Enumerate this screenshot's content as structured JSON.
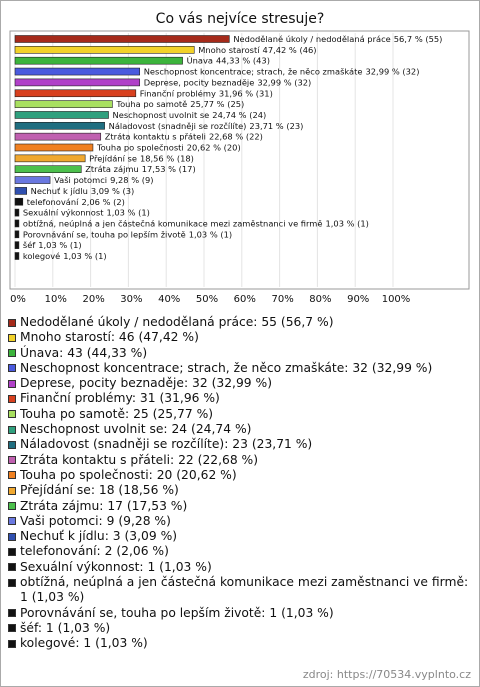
{
  "chart_data": {
    "type": "hbar",
    "title": "Co vás nejvíce stresuje?",
    "categories": [
      "Nedodělané úkoly / nedodělaná práce",
      "Mnoho starostí",
      "Únava",
      "Neschopnost koncentrace; strach, že něco zmaškáte",
      "Deprese, pocity beznaděje",
      "Finanční problémy",
      "Touha po samotě",
      "Neschopnost uvolnit se",
      "Náladovost (snadněji se rozčílíte)",
      "Ztráta kontaktu s přáteli",
      "Touha po společnosti",
      "Přejídání se",
      "Ztráta zájmu",
      "Vaši potomci",
      "Nechuť k jídlu",
      "telefonování",
      "Sexuální výkonnost",
      "obtížná, neúplná a jen částečná komunikace mezi zaměstnanci ve firmě",
      "Porovnávání se, touha po lepším životě",
      "šéf",
      "kolegové"
    ],
    "values": [
      56.7,
      47.42,
      44.33,
      32.99,
      32.99,
      31.96,
      25.77,
      24.74,
      23.71,
      22.68,
      20.62,
      18.56,
      17.53,
      9.28,
      3.09,
      2.06,
      1.03,
      1.03,
      1.03,
      1.03,
      1.03
    ],
    "value_labels": [
      "56,7 % (55)",
      "47,42 % (46)",
      "44,33 % (43)",
      "32,99 % (32)",
      "32,99 % (32)",
      "31,96 % (31)",
      "25,77 % (25)",
      "24,74 % (24)",
      "23,71 % (23)",
      "22,68 % (22)",
      "20,62 % (20)",
      "18,56 % (18)",
      "17,53 % (17)",
      "9,28 % (9)",
      "3,09 % (3)",
      "2,06 % (2)",
      "1,03 % (1)",
      "1,03 % (1)",
      "1,03 % (1)",
      "1,03 % (1)",
      "1,03 % (1)"
    ],
    "colors": [
      "#a52a1a",
      "#f2d22a",
      "#3cb43c",
      "#4a5ade",
      "#b040c8",
      "#d8401e",
      "#a8e060",
      "#2fa07e",
      "#1f6e80",
      "#c060b0",
      "#f08020",
      "#f0a830",
      "#4cc04c",
      "#6a78e0",
      "#3050b0",
      "#111111",
      "#111111",
      "#111111",
      "#111111",
      "#111111",
      "#111111"
    ],
    "legend": [
      "Nedodělané úkoly / nedodělaná práce: 55 (56,7 %)",
      "Mnoho starostí: 46 (47,42 %)",
      "Únava: 43 (44,33 %)",
      "Neschopnost koncentrace; strach, že něco zmaškáte: 32 (32,99 %)",
      "Deprese, pocity beznaděje: 32 (32,99 %)",
      "Finanční problémy: 31 (31,96 %)",
      "Touha po samotě: 25 (25,77 %)",
      "Neschopnost uvolnit se: 24 (24,74 %)",
      "Náladovost (snadněji se rozčílíte): 23 (23,71 %)",
      "Ztráta kontaktu s přáteli: 22 (22,68 %)",
      "Touha po společnosti: 20 (20,62 %)",
      "Přejídání se: 18 (18,56 %)",
      "Ztráta zájmu: 17 (17,53 %)",
      "Vaši potomci: 9 (9,28 %)",
      "Nechuť k jídlu: 3 (3,09 %)",
      "telefonování: 2 (2,06 %)",
      "Sexuální výkonnost: 1 (1,03 %)",
      "obtížná, neúplná a jen částečná komunikace mezi zaměstnanci ve firmě: 1 (1,03 %)",
      "Porovnávání se, touha po lepším životě: 1 (1,03 %)",
      "šéf: 1 (1,03 %)",
      "kolegové: 1 (1,03 %)"
    ],
    "xlim": [
      0,
      100
    ],
    "xticks": [
      {
        "value": 0,
        "label": "0%"
      },
      {
        "value": 10,
        "label": "10%"
      },
      {
        "value": 20,
        "label": "20%"
      },
      {
        "value": 30,
        "label": "30%"
      },
      {
        "value": 40,
        "label": "40%"
      },
      {
        "value": 50,
        "label": "50%"
      },
      {
        "value": 60,
        "label": "60%"
      },
      {
        "value": 70,
        "label": "70%"
      },
      {
        "value": 80,
        "label": "80%"
      },
      {
        "value": 90,
        "label": "90%"
      },
      {
        "value": 100,
        "label": "100%"
      }
    ],
    "grid": true,
    "source": "zdroj: https://70534.vyplnto.cz"
  }
}
